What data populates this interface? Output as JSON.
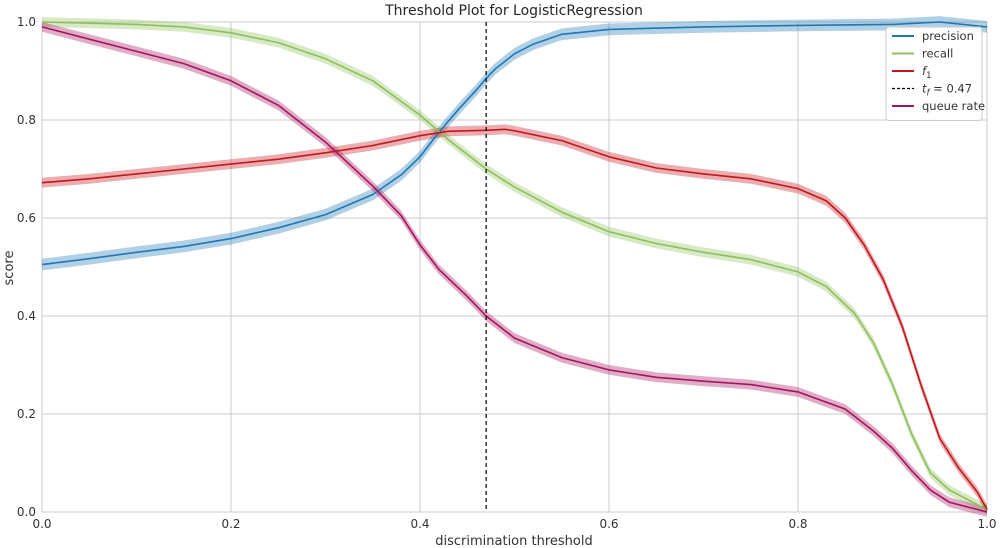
{
  "chart_data": {
    "type": "line",
    "title": "Threshold Plot for LogisticRegression",
    "xlabel": "discrimination threshold",
    "ylabel": "score",
    "xlim": [
      0.0,
      1.0
    ],
    "ylim": [
      0.0,
      1.0
    ],
    "xticks": [
      "0.0",
      "0.2",
      "0.4",
      "0.6",
      "0.8",
      "1.0"
    ],
    "yticks": [
      "0.0",
      "0.2",
      "0.4",
      "0.6",
      "0.8",
      "1.0"
    ],
    "grid": true,
    "legend_position": "top-right",
    "threshold": {
      "value": 0.47,
      "label": "t_f = 0.47",
      "color": "#000000"
    },
    "series": [
      {
        "name": "precision",
        "color": "#1f77b4",
        "band_half_width": 0.012,
        "points": [
          [
            0.0,
            0.505
          ],
          [
            0.05,
            0.517
          ],
          [
            0.1,
            0.53
          ],
          [
            0.15,
            0.542
          ],
          [
            0.2,
            0.558
          ],
          [
            0.25,
            0.58
          ],
          [
            0.3,
            0.607
          ],
          [
            0.35,
            0.648
          ],
          [
            0.38,
            0.688
          ],
          [
            0.4,
            0.725
          ],
          [
            0.42,
            0.775
          ],
          [
            0.44,
            0.82
          ],
          [
            0.46,
            0.862
          ],
          [
            0.47,
            0.885
          ],
          [
            0.48,
            0.905
          ],
          [
            0.5,
            0.935
          ],
          [
            0.52,
            0.955
          ],
          [
            0.55,
            0.975
          ],
          [
            0.6,
            0.985
          ],
          [
            0.7,
            0.99
          ],
          [
            0.8,
            0.993
          ],
          [
            0.9,
            0.995
          ],
          [
            0.95,
            1.0
          ],
          [
            1.0,
            0.99
          ]
        ]
      },
      {
        "name": "recall",
        "color": "#8dbf5a",
        "band_half_width": 0.01,
        "points": [
          [
            0.0,
            1.0
          ],
          [
            0.1,
            0.995
          ],
          [
            0.15,
            0.99
          ],
          [
            0.2,
            0.978
          ],
          [
            0.25,
            0.958
          ],
          [
            0.3,
            0.925
          ],
          [
            0.35,
            0.88
          ],
          [
            0.4,
            0.81
          ],
          [
            0.43,
            0.76
          ],
          [
            0.47,
            0.7
          ],
          [
            0.5,
            0.663
          ],
          [
            0.55,
            0.612
          ],
          [
            0.6,
            0.572
          ],
          [
            0.65,
            0.548
          ],
          [
            0.7,
            0.53
          ],
          [
            0.75,
            0.515
          ],
          [
            0.8,
            0.49
          ],
          [
            0.83,
            0.46
          ],
          [
            0.86,
            0.405
          ],
          [
            0.88,
            0.345
          ],
          [
            0.9,
            0.26
          ],
          [
            0.92,
            0.16
          ],
          [
            0.94,
            0.08
          ],
          [
            0.96,
            0.045
          ],
          [
            0.98,
            0.025
          ],
          [
            1.0,
            0.005
          ]
        ]
      },
      {
        "name": "f1",
        "label_main": "f",
        "label_sub": "1",
        "color": "#c4161c",
        "band_half_width": 0.01,
        "points": [
          [
            0.0,
            0.672
          ],
          [
            0.05,
            0.68
          ],
          [
            0.1,
            0.69
          ],
          [
            0.15,
            0.7
          ],
          [
            0.2,
            0.71
          ],
          [
            0.25,
            0.72
          ],
          [
            0.3,
            0.733
          ],
          [
            0.35,
            0.748
          ],
          [
            0.4,
            0.768
          ],
          [
            0.43,
            0.777
          ],
          [
            0.47,
            0.779
          ],
          [
            0.49,
            0.781
          ],
          [
            0.5,
            0.778
          ],
          [
            0.55,
            0.758
          ],
          [
            0.6,
            0.725
          ],
          [
            0.65,
            0.702
          ],
          [
            0.7,
            0.69
          ],
          [
            0.75,
            0.68
          ],
          [
            0.8,
            0.66
          ],
          [
            0.83,
            0.635
          ],
          [
            0.85,
            0.6
          ],
          [
            0.87,
            0.545
          ],
          [
            0.89,
            0.475
          ],
          [
            0.91,
            0.38
          ],
          [
            0.93,
            0.26
          ],
          [
            0.95,
            0.15
          ],
          [
            0.97,
            0.09
          ],
          [
            0.99,
            0.04
          ],
          [
            1.0,
            0.005
          ]
        ]
      },
      {
        "name": "queue rate",
        "color": "#a6135f",
        "band_half_width": 0.01,
        "points": [
          [
            0.0,
            0.99
          ],
          [
            0.05,
            0.965
          ],
          [
            0.1,
            0.94
          ],
          [
            0.15,
            0.915
          ],
          [
            0.2,
            0.88
          ],
          [
            0.25,
            0.83
          ],
          [
            0.3,
            0.755
          ],
          [
            0.35,
            0.665
          ],
          [
            0.38,
            0.605
          ],
          [
            0.4,
            0.545
          ],
          [
            0.42,
            0.495
          ],
          [
            0.45,
            0.44
          ],
          [
            0.47,
            0.4
          ],
          [
            0.5,
            0.355
          ],
          [
            0.55,
            0.315
          ],
          [
            0.6,
            0.29
          ],
          [
            0.65,
            0.275
          ],
          [
            0.7,
            0.267
          ],
          [
            0.75,
            0.26
          ],
          [
            0.8,
            0.245
          ],
          [
            0.85,
            0.21
          ],
          [
            0.88,
            0.165
          ],
          [
            0.9,
            0.13
          ],
          [
            0.92,
            0.085
          ],
          [
            0.94,
            0.045
          ],
          [
            0.96,
            0.02
          ],
          [
            0.98,
            0.01
          ],
          [
            1.0,
            0.0
          ]
        ]
      }
    ]
  }
}
